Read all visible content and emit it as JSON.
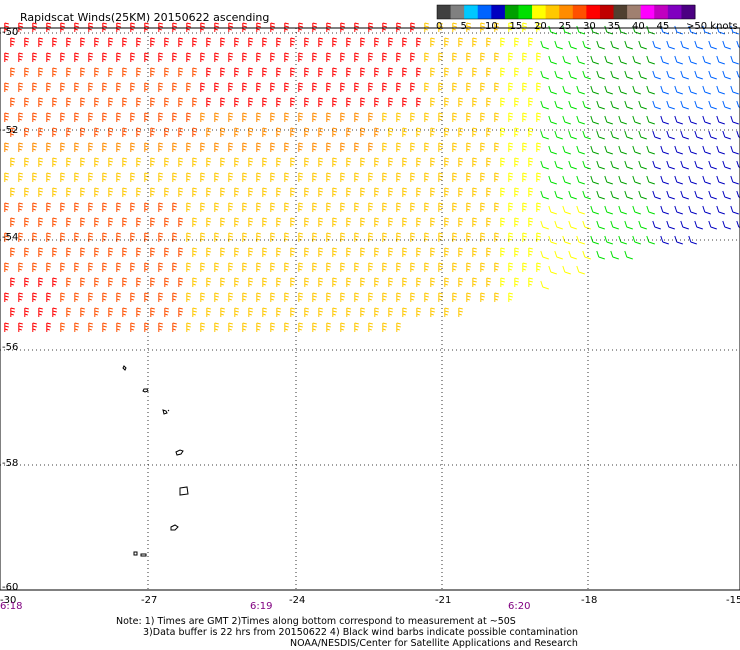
{
  "title": "Rapidscat Winds(25KM) 20150622 ascending",
  "legend": {
    "unit_label": ">50 knots",
    "ticks": [
      "0",
      "5",
      "10",
      "15",
      "20",
      "25",
      "30",
      "35",
      "40",
      "45"
    ],
    "colors": [
      "#404040",
      "#808080",
      "#00c8ff",
      "#0064ff",
      "#0000c0",
      "#00a000",
      "#00e000",
      "#ffff00",
      "#ffc800",
      "#ff8c00",
      "#ff5000",
      "#ff0000",
      "#c00000",
      "#504030",
      "#a08070",
      "#ff00ff",
      "#c000c0",
      "#8000c0",
      "#4b0082"
    ]
  },
  "axes": {
    "lat_labels": [
      "-50",
      "-52",
      "-54",
      "-56",
      "-58",
      "-60"
    ],
    "lon_labels": [
      "-30",
      "-27",
      "-24",
      "-21",
      "-18",
      "-15"
    ],
    "time_labels": [
      "6:18",
      "6:19",
      "6:20"
    ]
  },
  "notes": {
    "line1": "Note: 1) Times are GMT 2)Times along bottom correspond to measurement at ~50S",
    "line2": "3)Data buffer is 22 hrs from 20150622 4) Black wind barbs indicate possible contamination",
    "line3": "NOAA/NESDIS/Center for Satellite Applications and Research"
  }
}
